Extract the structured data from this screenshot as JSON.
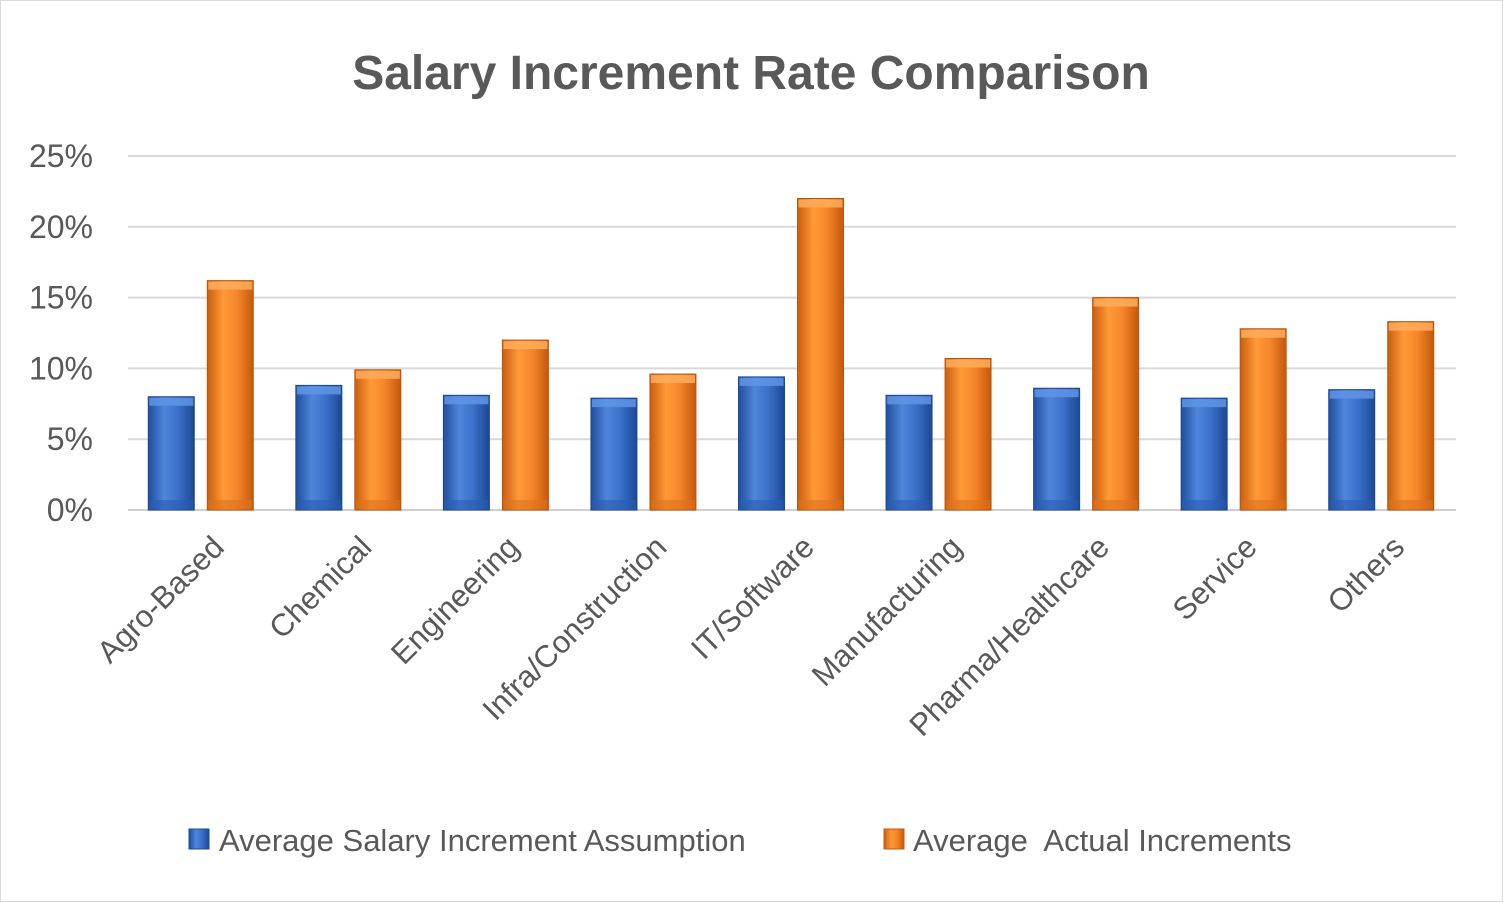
{
  "chart_data": {
    "type": "bar",
    "title": "Salary Increment Rate Comparison",
    "xlabel": "",
    "ylabel": "",
    "ylim": [
      0,
      0.25
    ],
    "yticks": [
      0,
      0.05,
      0.1,
      0.15,
      0.2,
      0.25
    ],
    "ytick_labels": [
      "0%",
      "5%",
      "10%",
      "15%",
      "20%",
      "25%"
    ],
    "grid": true,
    "legend_position": "bottom",
    "categories": [
      "Agro-Based",
      "Chemical",
      "Engineering",
      "Infra/Construction",
      "IT/Software",
      "Manufacturing",
      "Pharma/Healthcare",
      "Service",
      "Others"
    ],
    "series": [
      {
        "name": "Average Salary Increment Assumption",
        "color": "#2e64c0",
        "values": [
          0.08,
          0.088,
          0.081,
          0.079,
          0.094,
          0.081,
          0.086,
          0.079,
          0.085
        ]
      },
      {
        "name": "Average  Actual Increments",
        "color": "#ee7a1c",
        "values": [
          0.162,
          0.099,
          0.12,
          0.096,
          0.22,
          0.107,
          0.15,
          0.128,
          0.133
        ]
      }
    ]
  }
}
